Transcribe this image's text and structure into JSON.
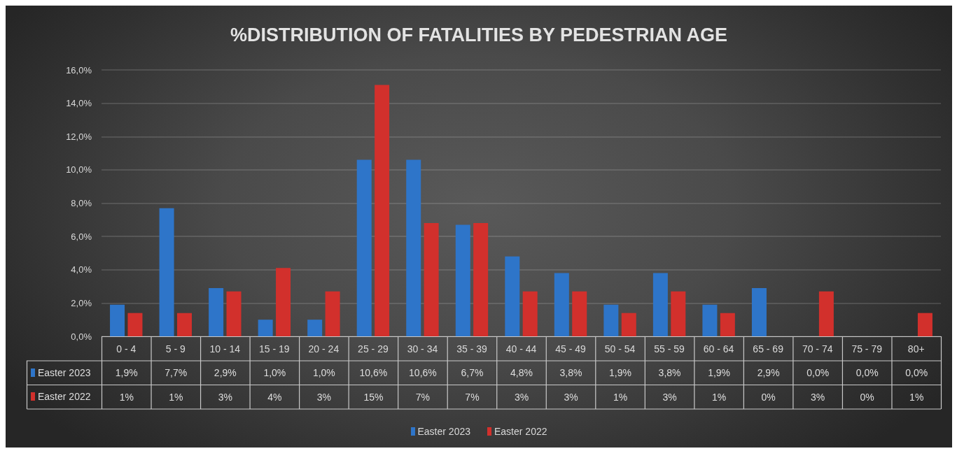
{
  "chart_data": {
    "type": "bar",
    "title": "%DISTRIBUTION OF FATALITIES BY PEDESTRIAN AGE",
    "categories": [
      "0 - 4",
      "5 - 9",
      "10 - 14",
      "15 - 19",
      "20 - 24",
      "25 - 29",
      "30 - 34",
      "35 - 39",
      "40 - 44",
      "45 - 49",
      "50 - 54",
      "55 - 59",
      "60 - 64",
      "65 - 69",
      "70 - 74",
      "75 - 79",
      "80+"
    ],
    "series": [
      {
        "name": "Easter 2023",
        "color": "#2e75c9",
        "values": [
          1.9,
          7.7,
          2.9,
          1.0,
          1.0,
          10.6,
          10.6,
          6.7,
          4.8,
          3.8,
          1.9,
          3.8,
          1.9,
          2.9,
          0.0,
          0.0,
          0.0
        ],
        "value_labels": [
          "1,9%",
          "7,7%",
          "2,9%",
          "1,0%",
          "1,0%",
          "10,6%",
          "10,6%",
          "6,7%",
          "4,8%",
          "3,8%",
          "1,9%",
          "3,8%",
          "1,9%",
          "2,9%",
          "0,0%",
          "0,0%",
          "0,0%"
        ]
      },
      {
        "name": "Easter 2022",
        "color": "#d2302c",
        "values": [
          1.4,
          1.4,
          2.7,
          4.1,
          2.7,
          15.1,
          6.8,
          6.8,
          2.7,
          2.7,
          1.4,
          2.7,
          1.4,
          0,
          2.7,
          0,
          1.4
        ],
        "value_labels": [
          "1%",
          "1%",
          "3%",
          "4%",
          "3%",
          "15%",
          "7%",
          "7%",
          "3%",
          "3%",
          "1%",
          "3%",
          "1%",
          "0%",
          "3%",
          "0%",
          "1%"
        ]
      }
    ],
    "ylim": [
      0,
      16
    ],
    "yticks": [
      {
        "value": 0,
        "label": "0,0%"
      },
      {
        "value": 2,
        "label": "2,0%"
      },
      {
        "value": 4,
        "label": "4,0%"
      },
      {
        "value": 6,
        "label": "6,0%"
      },
      {
        "value": 8,
        "label": "8,0%"
      },
      {
        "value": 10,
        "label": "10,0%"
      },
      {
        "value": 12,
        "label": "12,0%"
      },
      {
        "value": 14,
        "label": "14,0%"
      },
      {
        "value": 16,
        "label": "16,0%"
      }
    ],
    "grid": "y",
    "legend": "bottom"
  }
}
